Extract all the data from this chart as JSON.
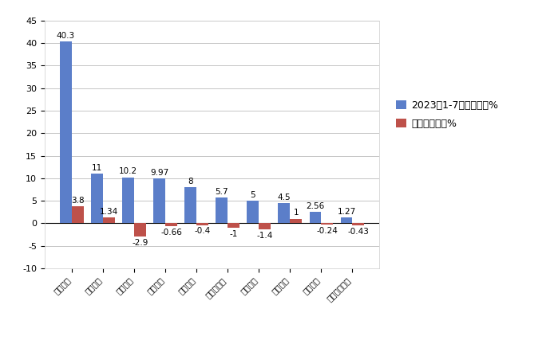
{
  "categories": [
    "长城汽车",
    "江淮汽车",
    "江酶汽车",
    "上汽大通",
    "郑州日产",
    "江西五十铃",
    "长安汽车",
    "福田汽车",
    "河北中兴",
    "上汽通用五菱"
  ],
  "market_share": [
    40.3,
    11,
    10.2,
    9.97,
    8,
    5.7,
    5,
    4.5,
    2.56,
    1.27
  ],
  "yoy_change": [
    3.8,
    1.34,
    -2.9,
    -0.66,
    -0.4,
    -1,
    -1.4,
    1,
    -0.24,
    -0.43
  ],
  "bar_color_share": "#5B7EC9",
  "bar_color_yoy": "#BE514A",
  "legend_share": "2023年1-7月市场份额%",
  "legend_yoy": "同比份额增减%",
  "ylim_min": -10,
  "ylim_max": 45,
  "yticks": [
    -10,
    -5,
    0,
    5,
    10,
    15,
    20,
    25,
    30,
    35,
    40,
    45
  ],
  "bg_color": "#FFFFFF",
  "grid_color": "#BBBBBB",
  "bar_width": 0.38
}
